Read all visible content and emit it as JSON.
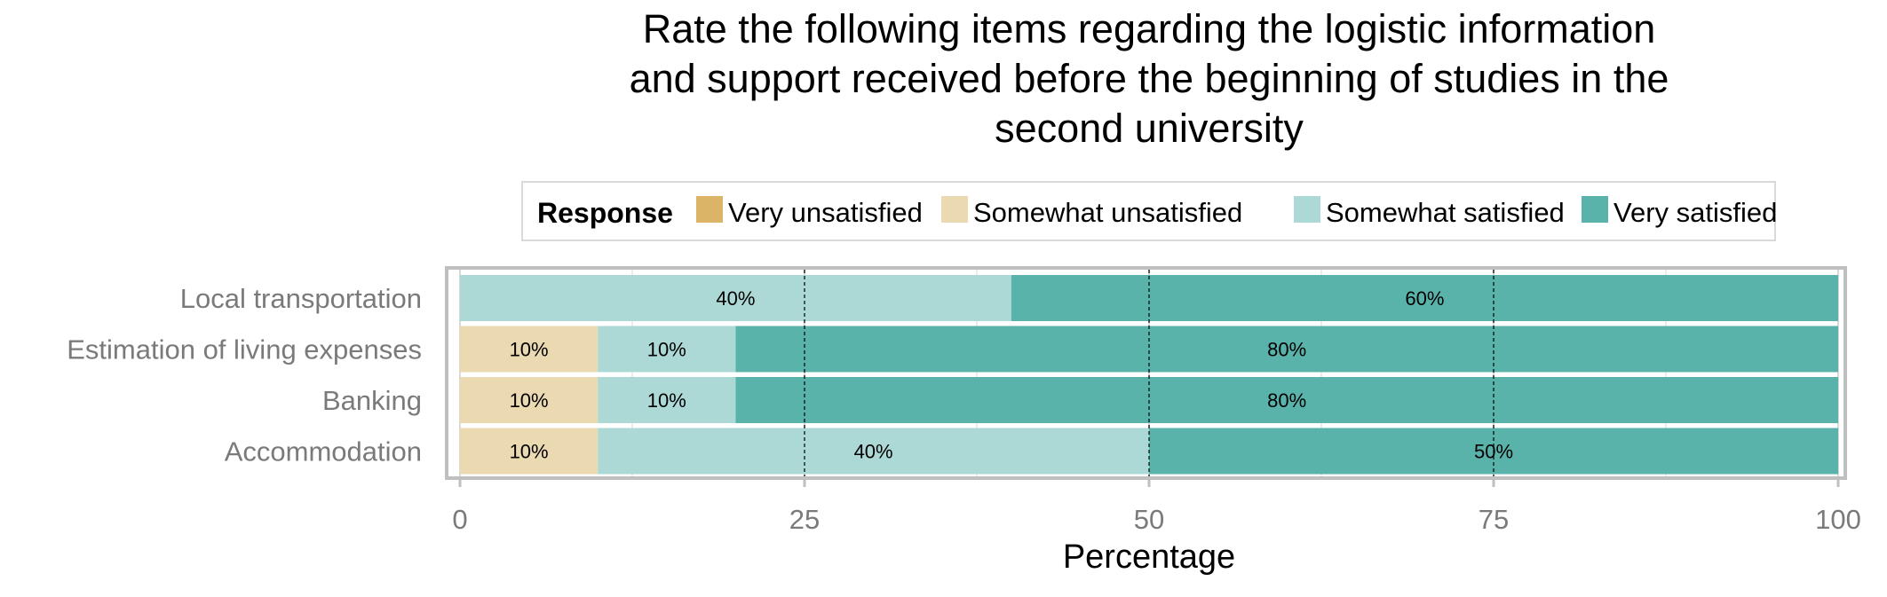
{
  "chart_data": {
    "type": "bar",
    "orientation": "horizontal",
    "stacked": true,
    "title_lines": [
      "Rate the following items regarding the logistic information",
      "and support received before the beginning of studies in the",
      "second university"
    ],
    "xlabel": "Percentage",
    "ylabel": "",
    "xlim": [
      0,
      100
    ],
    "xticks": [
      0,
      25,
      50,
      75,
      100
    ],
    "legend": {
      "title": "Response",
      "placement": "top"
    },
    "categories": [
      "Local transportation",
      "Estimation of living expenses",
      "Banking",
      "Accommodation"
    ],
    "series": [
      {
        "name": "Very unsatisfied",
        "color": "#dbb467",
        "values": [
          0,
          0,
          0,
          0
        ]
      },
      {
        "name": "Somewhat unsatisfied",
        "color": "#ebd9b2",
        "values": [
          0,
          10,
          10,
          10
        ]
      },
      {
        "name": "Somewhat satisfied",
        "color": "#acd9d5",
        "values": [
          40,
          10,
          10,
          40
        ]
      },
      {
        "name": "Very satisfied",
        "color": "#5ab3aa",
        "values": [
          60,
          80,
          80,
          50
        ]
      }
    ],
    "value_labels": [
      [
        "",
        "",
        "40%",
        "60%"
      ],
      [
        "",
        "10%",
        "10%",
        "80%"
      ],
      [
        "",
        "10%",
        "10%",
        "80%"
      ],
      [
        "",
        "10%",
        "40%",
        "50%"
      ]
    ]
  }
}
